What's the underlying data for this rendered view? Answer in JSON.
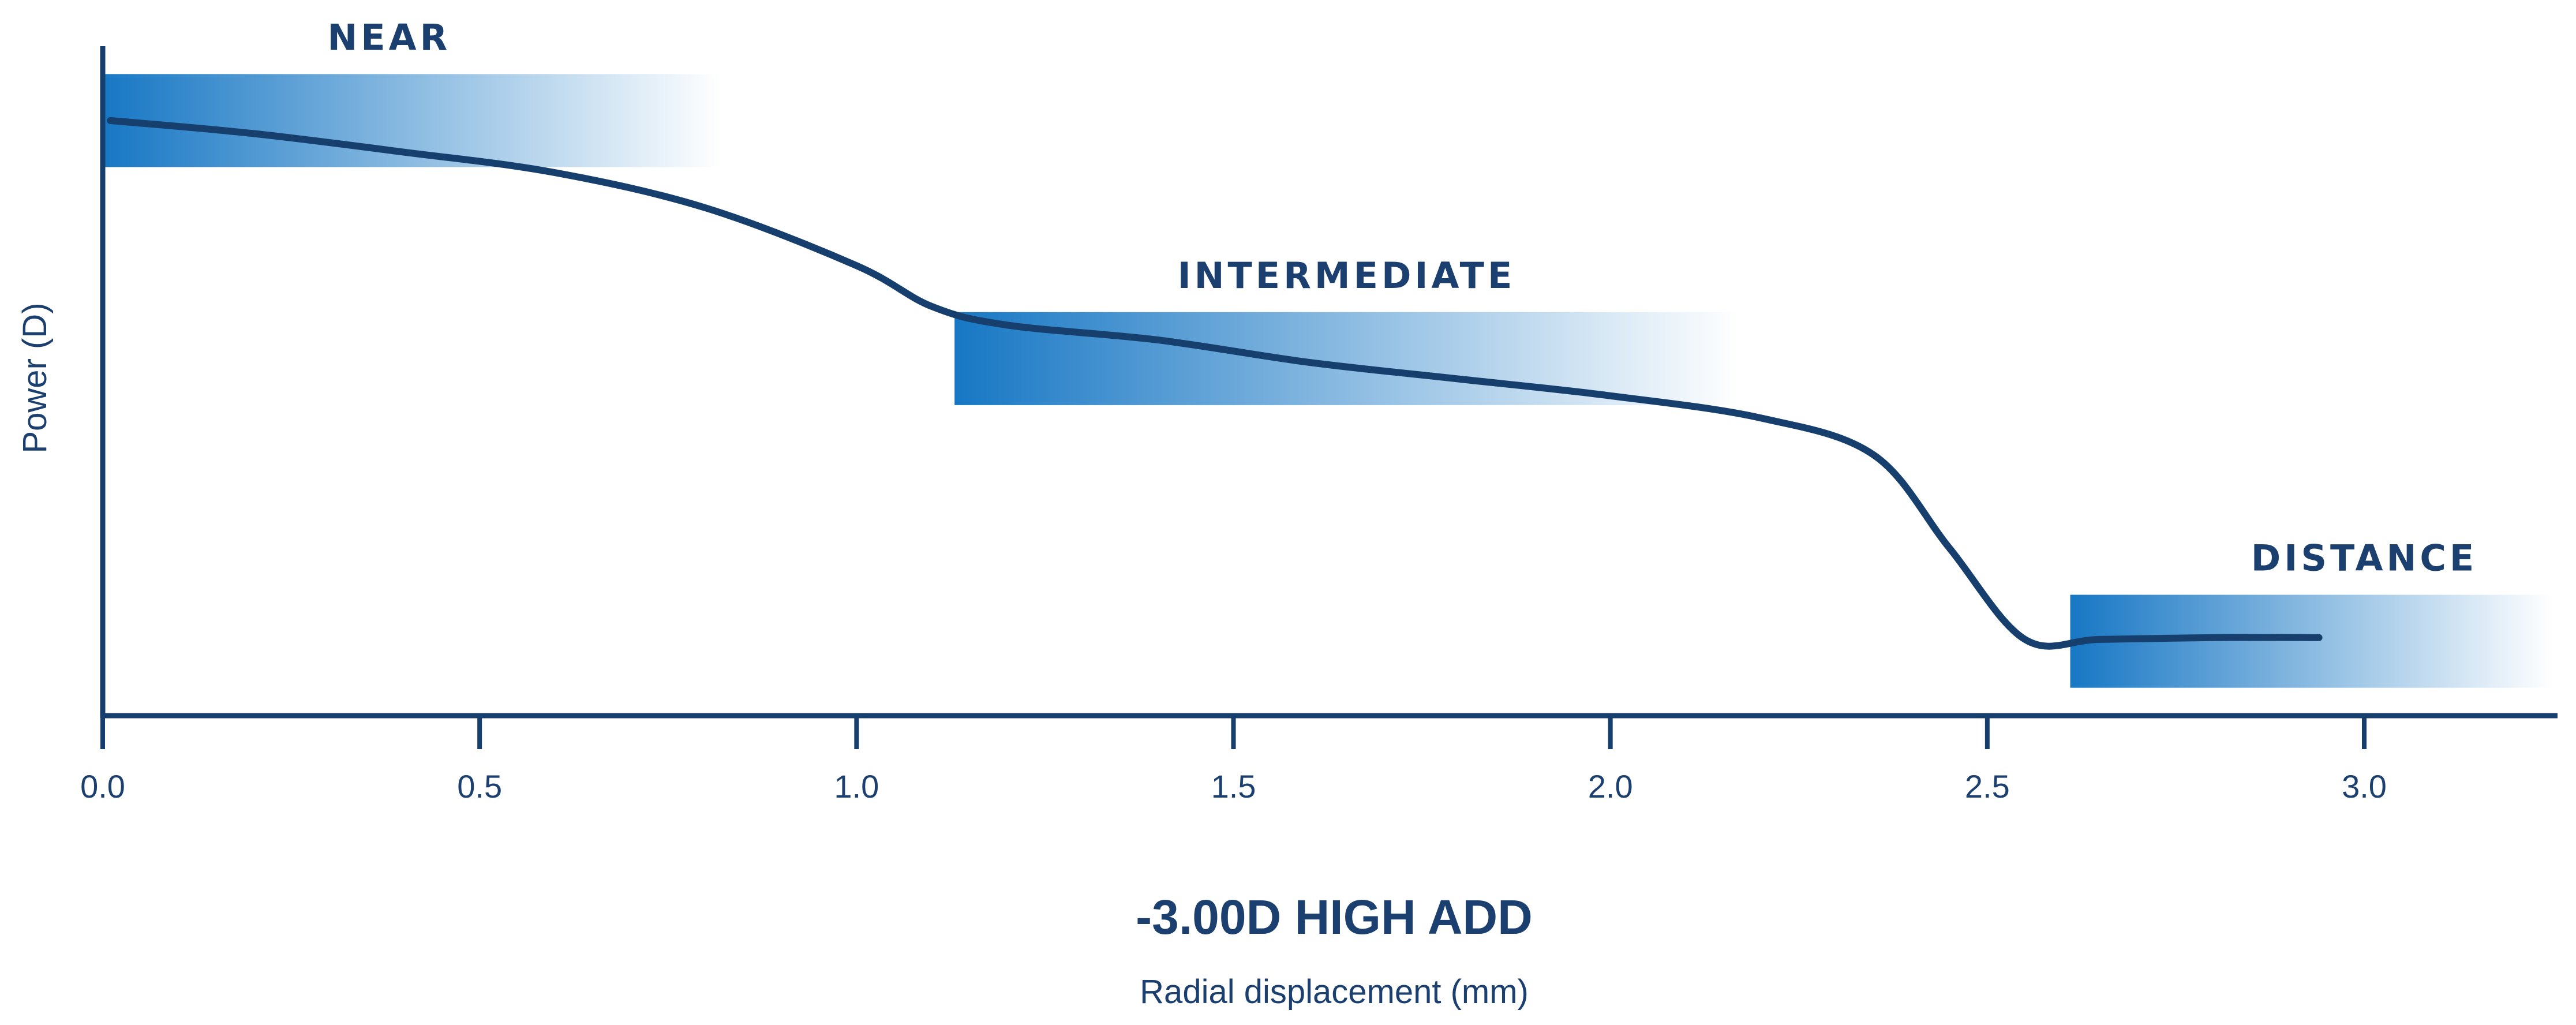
{
  "chart_data": {
    "type": "line",
    "title": "-3.00D HIGH ADD",
    "xlabel": "Radial displacement (mm)",
    "ylabel": "Power (D)",
    "xlim": [
      0,
      3.25
    ],
    "ylim": [
      0,
      3.6
    ],
    "x_ticks": [
      "0.0",
      "0.5",
      "1.0",
      "1.5",
      "2.0",
      "2.5",
      "3.0"
    ],
    "y_ticks_shown": false,
    "grid": false,
    "line_color": "#163f6e",
    "zone_color": "#1777c4",
    "zones": [
      {
        "label": "NEAR",
        "x_start": 0.0,
        "x_end": 0.82,
        "y_low": 2.95,
        "y_high": 3.45
      },
      {
        "label": "INTERMEDIATE",
        "x_start": 1.13,
        "x_end": 2.17,
        "y_low": 1.67,
        "y_high": 2.17
      },
      {
        "label": "DISTANCE",
        "x_start": 2.61,
        "x_end": 3.25,
        "y_low": 0.15,
        "y_high": 0.65
      }
    ],
    "series": [
      {
        "x": [
          0.01,
          0.2,
          0.4,
          0.6,
          0.8,
          1.0,
          1.1,
          1.2,
          1.4,
          1.6,
          1.8,
          2.0,
          2.2,
          2.35,
          2.45,
          2.55,
          2.65,
          2.8,
          2.94
        ],
        "values": [
          3.2,
          3.13,
          3.03,
          2.92,
          2.73,
          2.42,
          2.2,
          2.1,
          2.02,
          1.9,
          1.81,
          1.72,
          1.6,
          1.4,
          0.9,
          0.41,
          0.41,
          0.42,
          0.42
        ]
      }
    ]
  }
}
